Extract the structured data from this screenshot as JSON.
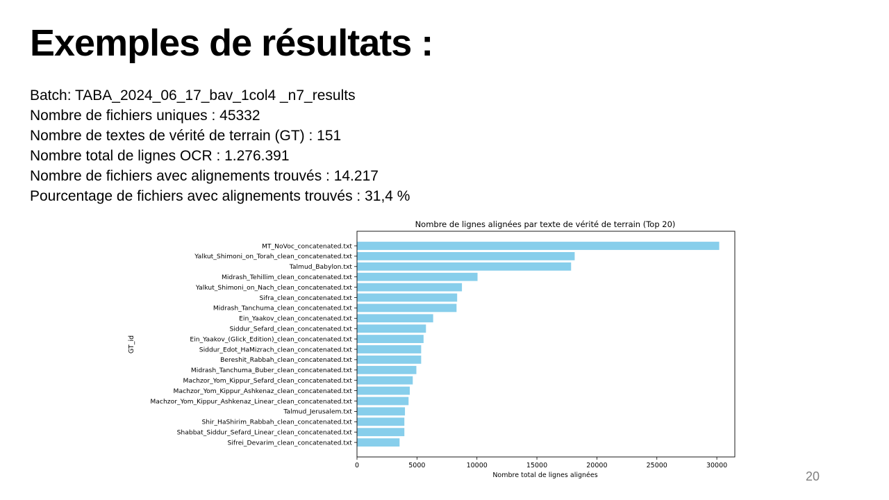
{
  "slide": {
    "title": "Exemples de résultats :",
    "page_number": "20"
  },
  "stats": [
    "Batch: TABA_2024_06_17_bav_1col4 _n7_results",
    "Nombre de fichiers uniques : 45332",
    "Nombre de textes de vérité de terrain (GT) : 151",
    "Nombre total de lignes OCR : 1.276.391",
    "Nombre de fichiers avec alignements trouvés : 14.217",
    "Pourcentage de fichiers avec alignements trouvés : 31,4 %"
  ],
  "chart_data": {
    "type": "bar",
    "orientation": "horizontal",
    "title": "Nombre de lignes alignées par texte de vérité de terrain (Top 20)",
    "xlabel": "Nombre total de lignes alignées",
    "ylabel": "GT_id",
    "xlim": [
      0,
      31500
    ],
    "xticks": [
      0,
      5000,
      10000,
      15000,
      20000,
      25000,
      30000
    ],
    "bar_color": "#87ceeb",
    "grid": false,
    "categories": [
      "MT_NoVoc_concatenated.txt",
      "Yalkut_Shimoni_on_Torah_clean_concatenated.txt",
      "Talmud_Babylon.txt",
      "Midrash_Tehillim_clean_concatenated.txt",
      "Yalkut_Shimoni_on_Nach_clean_concatenated.txt",
      "Sifra_clean_concatenated.txt",
      "Midrash_Tanchuma_clean_concatenated.txt",
      "Ein_Yaakov_clean_concatenated.txt",
      "Siddur_Sefard_clean_concatenated.txt",
      "Ein_Yaakov_(Glick_Edition)_clean_concatenated.txt",
      "Siddur_Edot_HaMizrach_clean_concatenated.txt",
      "Bereshit_Rabbah_clean_concatenated.txt",
      "Midrash_Tanchuma_Buber_clean_concatenated.txt",
      "Machzor_Yom_Kippur_Sefard_clean_concatenated.txt",
      "Machzor_Yom_Kippur_Ashkenaz_clean_concatenated.txt",
      "Machzor_Yom_Kippur_Ashkenaz_Linear_clean_concatenated.txt",
      "Talmud_Jerusalem.txt",
      "Shir_HaShirim_Rabbah_clean_concatenated.txt",
      "Shabbat_Siddur_Sefard_Linear_clean_concatenated.txt",
      "Sifrei_Devarim_clean_concatenated.txt"
    ],
    "values": [
      30200,
      18150,
      17850,
      10050,
      8750,
      8350,
      8300,
      6350,
      5750,
      5550,
      5350,
      5350,
      4950,
      4650,
      4400,
      4300,
      4000,
      3950,
      3950,
      3550
    ]
  }
}
